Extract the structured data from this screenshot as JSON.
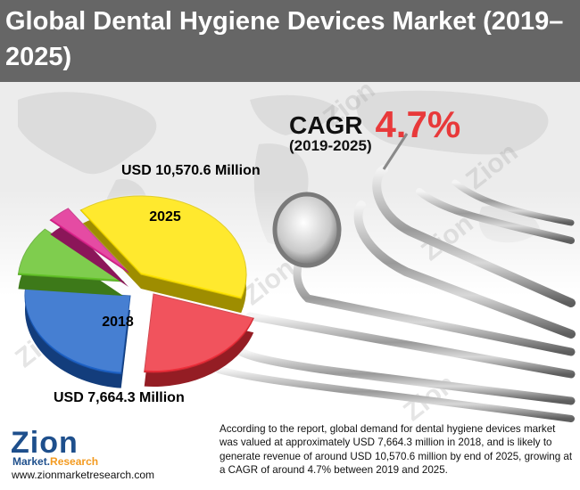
{
  "title": "Global Dental Hygiene Devices Market (2019–2025)",
  "cagr": {
    "label": "CAGR",
    "value": "4.7%",
    "period": "(2019-2025)"
  },
  "chart_data": {
    "type": "pie",
    "slices": [
      {
        "label": "2025",
        "value": 10570.6,
        "display": "USD 10,570.6 Million"
      },
      {
        "label": "2018",
        "value": 7664.3,
        "display": "USD 7,664.3 Million"
      }
    ],
    "title": "",
    "colors": [
      "#ffe400",
      "#1e63c8",
      "#ee2e3a",
      "#63c328",
      "#e0248f"
    ]
  },
  "description": "According to the report, global demand for dental hygiene devices market was valued at approximately USD 7,664.3 million in 2018, and is likely to generate revenue of around USD 10,570.6 million by end of 2025, growing at a CAGR of around 4.7% between 2019 and 2025.",
  "logo": {
    "word": "Zion",
    "sub_left": "Market.",
    "sub_right": "Research",
    "url": "www.zionmarketresearch.com"
  },
  "watermark": "Zion"
}
